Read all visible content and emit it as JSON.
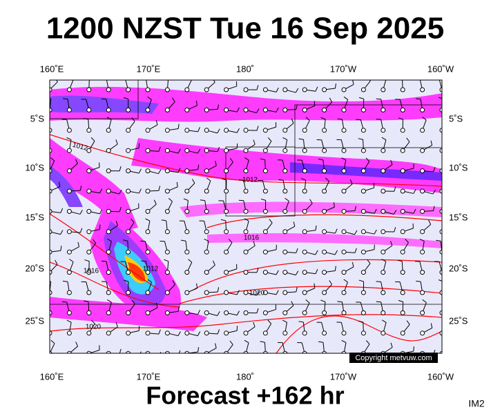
{
  "header": {
    "title": "1200 NZST Tue 16 Sep 2025"
  },
  "axes": {
    "top": [
      "160˚E",
      "170˚E",
      "180˚",
      "170˚W",
      "160˚W"
    ],
    "bottom": [
      "160˚E",
      "170˚E",
      "180˚",
      "170˚W",
      "160˚W"
    ],
    "left": [
      "5˚S",
      "10˚S",
      "15˚S",
      "20˚S",
      "25˚S"
    ],
    "right": [
      "5˚S",
      "10˚S",
      "15˚S",
      "20˚S",
      "25˚S"
    ]
  },
  "isobar_labels": [
    "1012",
    "1012",
    "1016",
    "1012",
    "1016",
    "1020",
    "1020"
  ],
  "copyright": "Copyright metvuw.com",
  "footer": {
    "forecast": "Forecast +162 hr",
    "image_id": "IM2"
  }
}
